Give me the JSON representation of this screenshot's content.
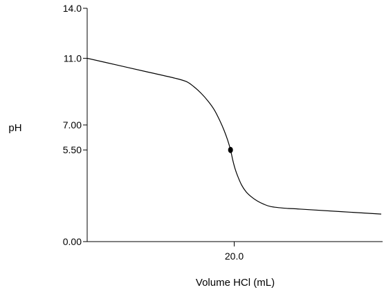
{
  "chart_data": {
    "type": "line",
    "title": "",
    "xlabel": "Volume HCl (mL)",
    "ylabel": "pH",
    "xlim": [
      0,
      40
    ],
    "ylim": [
      0,
      14.0
    ],
    "x_ticks": [
      {
        "value": 20.0,
        "label": "20.0"
      }
    ],
    "y_ticks": [
      {
        "value": 0.0,
        "label": "0.00"
      },
      {
        "value": 5.5,
        "label": "5.50"
      },
      {
        "value": 7.0,
        "label": "7.00"
      },
      {
        "value": 11.0,
        "label": "11.0"
      },
      {
        "value": 14.0,
        "label": "14.0"
      }
    ],
    "grid": false,
    "legend": "none",
    "series": [
      {
        "x": [
          0,
          4,
          8,
          12,
          13.5,
          14.5,
          15.5,
          16.5,
          17.3,
          18.0,
          18.6,
          19.1,
          19.5,
          19.8,
          20.1,
          20.5,
          21.0,
          21.6,
          22.3,
          23.1,
          24.0,
          25.0,
          27.0,
          29.0,
          40
        ],
        "y": [
          11.0,
          10.6,
          10.2,
          9.8,
          9.6,
          9.3,
          8.9,
          8.4,
          7.9,
          7.3,
          6.7,
          6.1,
          5.5,
          4.9,
          4.4,
          3.9,
          3.4,
          3.0,
          2.7,
          2.45,
          2.25,
          2.1,
          2.0,
          1.95,
          1.65
        ]
      }
    ],
    "points": [
      {
        "x": 19.5,
        "y": 5.5
      }
    ],
    "colors": {
      "line": "#000000",
      "point": "#000000"
    }
  }
}
